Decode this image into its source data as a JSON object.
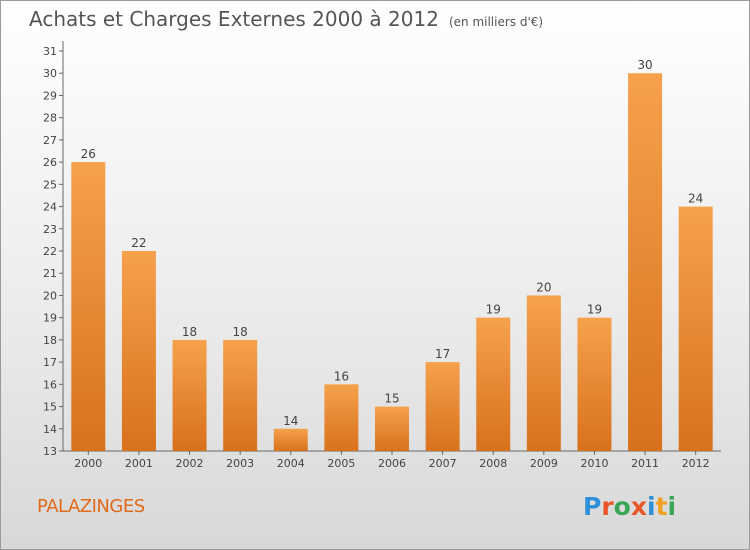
{
  "header": {
    "title": "Achats et Charges Externes 2000 à 2012",
    "unit": "(en milliers d'€)"
  },
  "footer": {
    "commune": "PALAZINGES",
    "brand": {
      "letters": [
        "P",
        "r",
        "o",
        "x",
        "i",
        "t",
        "i"
      ],
      "colors": [
        "#2f8fd8",
        "#e8562a",
        "#3aa655",
        "#e8562a",
        "#2f8fd8",
        "#f0a020",
        "#3aa655"
      ]
    }
  },
  "chart_data": {
    "type": "bar",
    "title": "Achats et Charges Externes 2000 à 2012",
    "subtitle": "(en milliers d'€)",
    "categories": [
      "2000",
      "2001",
      "2002",
      "2003",
      "2004",
      "2005",
      "2006",
      "2007",
      "2008",
      "2009",
      "2010",
      "2011",
      "2012"
    ],
    "values": [
      26,
      22,
      18,
      18,
      14,
      16,
      15,
      17,
      19,
      20,
      19,
      30,
      24
    ],
    "ylim": [
      13,
      31
    ],
    "yticks": [
      13,
      14,
      15,
      16,
      17,
      18,
      19,
      20,
      21,
      22,
      23,
      24,
      25,
      26,
      27,
      28,
      29,
      30,
      31
    ],
    "grid": false,
    "legend": "none",
    "colors": {
      "bar_light": "#f6a14c",
      "bar_dark": "#d8711c",
      "label": "#444444"
    }
  }
}
